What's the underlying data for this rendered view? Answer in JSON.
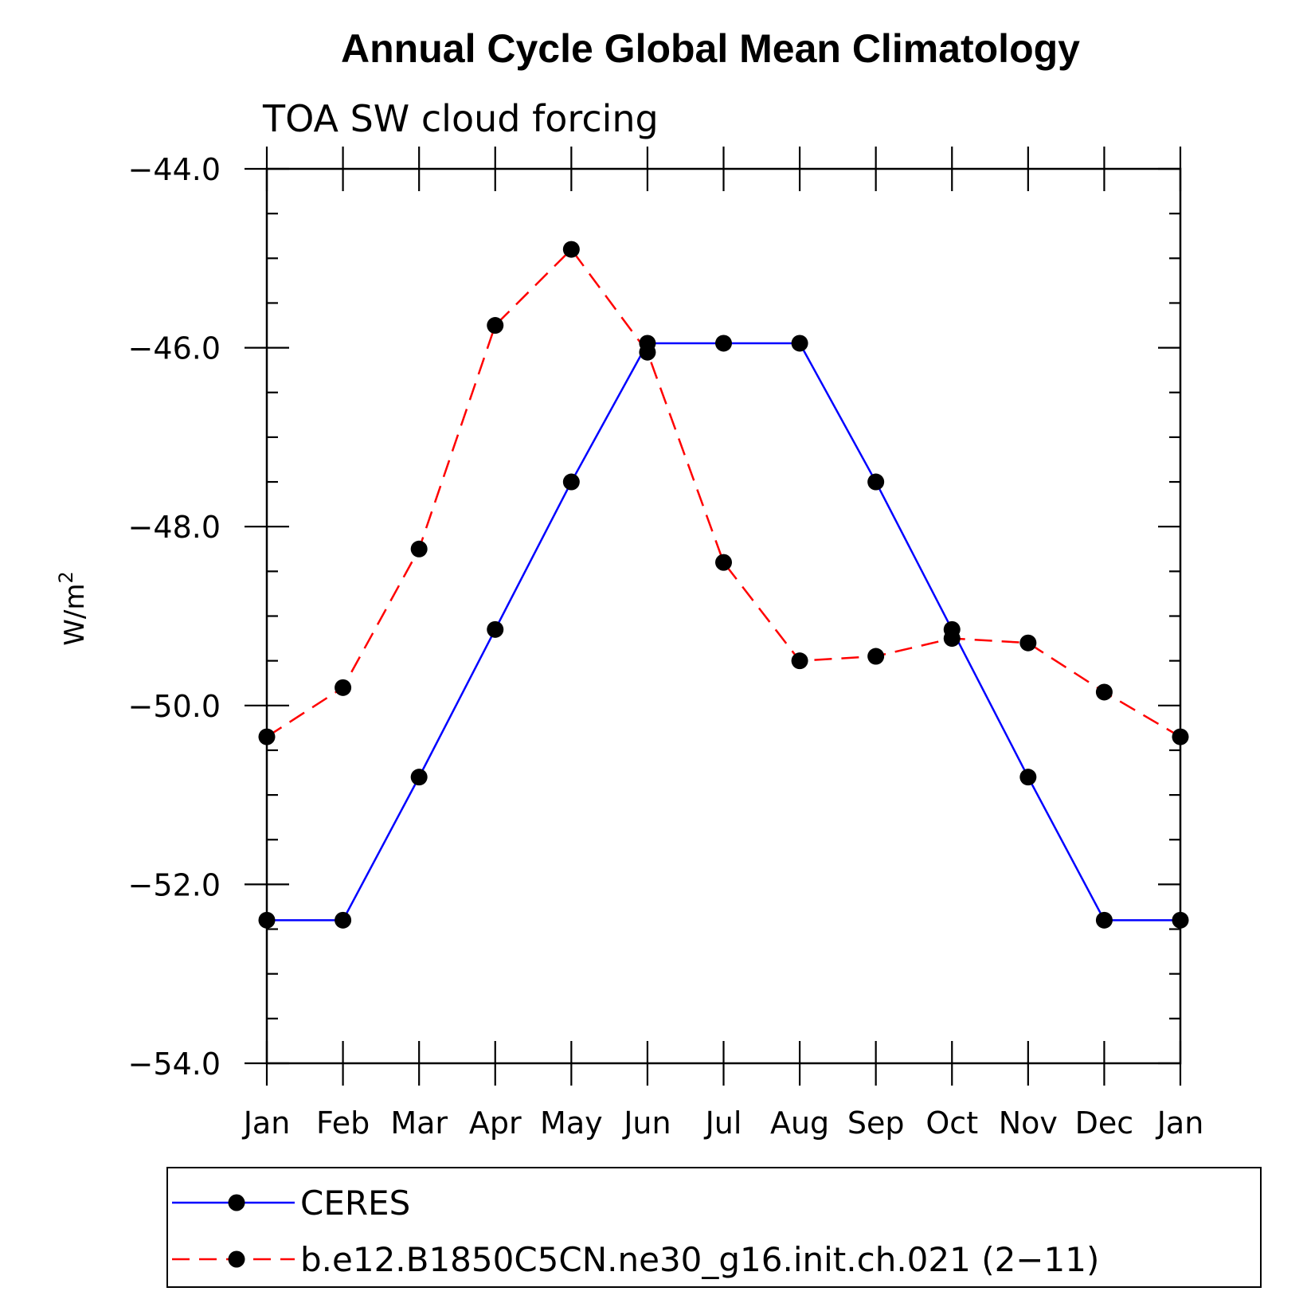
{
  "chart_data": {
    "type": "line",
    "title": "Annual Cycle Global Mean Climatology",
    "subtitle": "TOA SW cloud forcing",
    "ylabel": "W/m",
    "ylabel_superscript": "2",
    "xlabel": "",
    "categories": [
      "Jan",
      "Feb",
      "Mar",
      "Apr",
      "May",
      "Jun",
      "Jul",
      "Aug",
      "Sep",
      "Oct",
      "Nov",
      "Dec",
      "Jan"
    ],
    "ylim": [
      -54.0,
      -44.0
    ],
    "yticks": [
      -44.0,
      -46.0,
      -48.0,
      -50.0,
      -52.0,
      -54.0
    ],
    "ytick_labels": [
      "−44.0",
      "−46.0",
      "−48.0",
      "−50.0",
      "−52.0",
      "−54.0"
    ],
    "series": [
      {
        "name": "CERES",
        "color": "#0000ff",
        "dash": "solid",
        "values": [
          -52.4,
          -52.4,
          -50.8,
          -49.15,
          -47.5,
          -45.95,
          -45.95,
          -45.95,
          -47.5,
          -49.15,
          -50.8,
          -52.4,
          -52.4
        ]
      },
      {
        "name": "b.e12.B1850C5CN.ne30_g16.init.ch.021 (2−11)",
        "color": "#ff0000",
        "dash": "dashed",
        "values": [
          -50.35,
          -49.8,
          -48.25,
          -45.75,
          -44.9,
          -46.05,
          -48.4,
          -49.5,
          -49.45,
          -49.25,
          -49.3,
          -49.85,
          -50.35
        ]
      }
    ],
    "grid": false,
    "legend_position": "bottom"
  }
}
